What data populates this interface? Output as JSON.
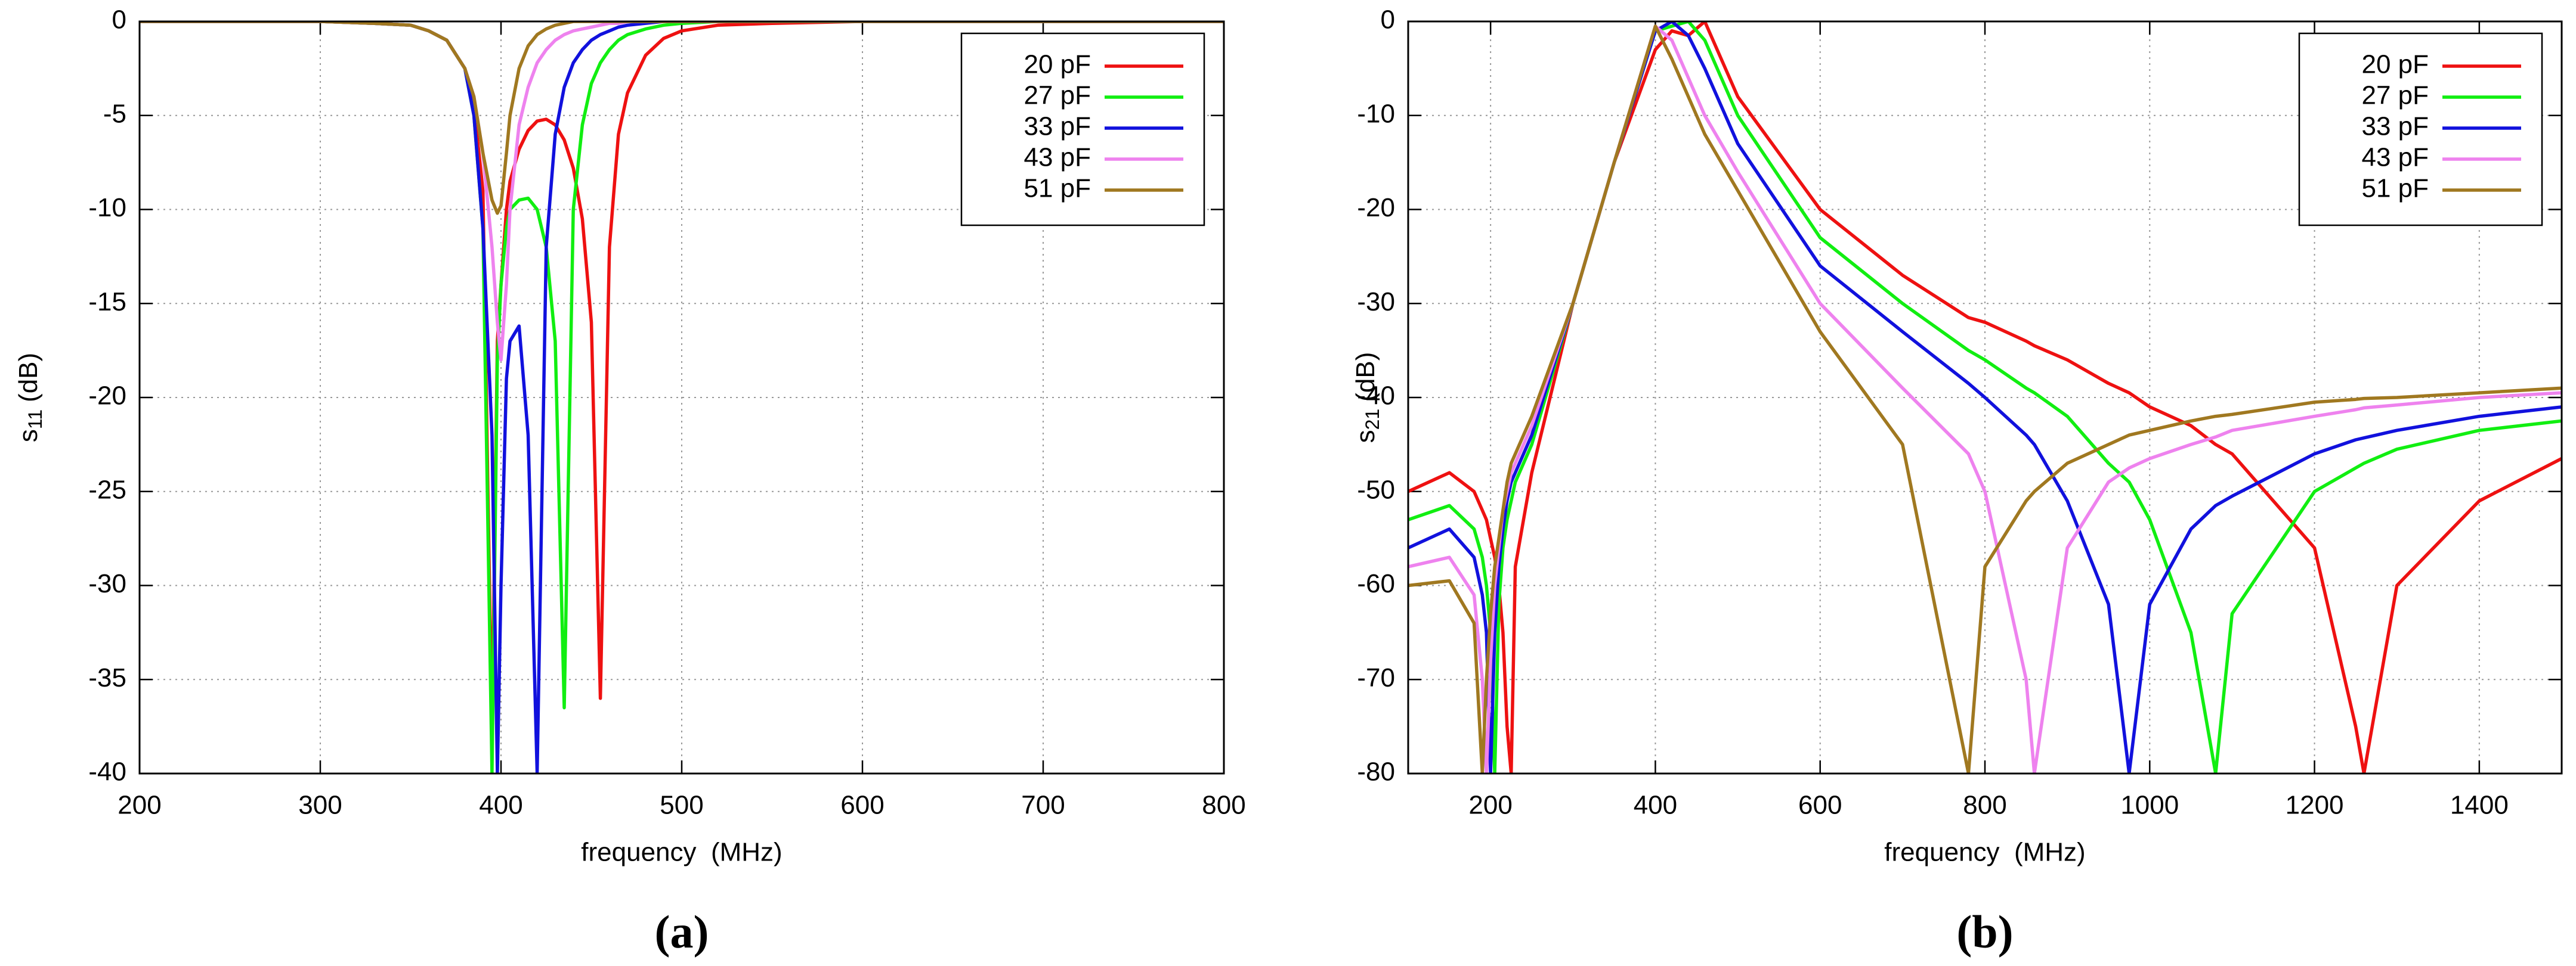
{
  "chart_data": [
    {
      "type": "line",
      "caption": "(a)",
      "x_label": "frequency  (MHz)",
      "y_label": {
        "main": "s",
        "sub": "11",
        "unit": "(dB)"
      },
      "xlim": [
        200,
        800
      ],
      "xticks": [
        200,
        300,
        400,
        500,
        600,
        700,
        800
      ],
      "ylim": [
        -40,
        0
      ],
      "yticks": [
        0,
        -5,
        -10,
        -15,
        -20,
        -25,
        -30,
        -35,
        -40
      ],
      "grid": true,
      "legend": "top-right",
      "x": [
        200,
        250,
        300,
        330,
        350,
        360,
        370,
        380,
        385,
        390,
        395,
        398,
        400,
        403,
        405,
        410,
        415,
        420,
        425,
        430,
        435,
        440,
        445,
        450,
        455,
        460,
        465,
        470,
        480,
        490,
        500,
        520,
        550,
        600,
        650,
        700,
        750,
        800
      ],
      "series": [
        {
          "name": "20 pF",
          "color": "#ee1111",
          "values": [
            0,
            0,
            0,
            -0.1,
            -0.2,
            -0.5,
            -1,
            -2.5,
            -4.5,
            -9,
            -38,
            -17,
            -14,
            -10,
            -8.5,
            -6.8,
            -5.8,
            -5.3,
            -5.2,
            -5.5,
            -6.3,
            -7.8,
            -10.5,
            -16,
            -36,
            -12,
            -6,
            -3.8,
            -1.8,
            -0.9,
            -0.5,
            -0.2,
            -0.1,
            0,
            0,
            0,
            0,
            0
          ]
        },
        {
          "name": "27 pF",
          "color": "#11ee11",
          "values": [
            0,
            0,
            0,
            -0.1,
            -0.2,
            -0.5,
            -1,
            -2.5,
            -5,
            -11,
            -40,
            -18,
            -14,
            -11,
            -10,
            -9.5,
            -9.4,
            -10,
            -12,
            -17,
            -36.5,
            -10,
            -5.5,
            -3.3,
            -2.2,
            -1.5,
            -1,
            -0.7,
            -0.4,
            -0.2,
            -0.1,
            0,
            0,
            0,
            0,
            0,
            0,
            0
          ]
        },
        {
          "name": "33 pF",
          "color": "#1111dd",
          "values": [
            0,
            0,
            0,
            -0.1,
            -0.2,
            -0.5,
            -1,
            -2.5,
            -5,
            -11,
            -22,
            -40,
            -30,
            -19,
            -17,
            -16.2,
            -22,
            -40,
            -12,
            -6,
            -3.5,
            -2.2,
            -1.5,
            -1,
            -0.7,
            -0.5,
            -0.3,
            -0.2,
            -0.1,
            0,
            0,
            0,
            0,
            0,
            0,
            0,
            0,
            0
          ]
        },
        {
          "name": "43 pF",
          "color": "#ee82ee",
          "values": [
            0,
            0,
            0,
            -0.1,
            -0.2,
            -0.5,
            -1,
            -2.5,
            -4,
            -7,
            -12,
            -16,
            -18,
            -14,
            -10,
            -5.5,
            -3.5,
            -2.2,
            -1.5,
            -1,
            -0.7,
            -0.5,
            -0.4,
            -0.3,
            -0.2,
            -0.1,
            -0.1,
            0,
            0,
            0,
            0,
            0,
            0,
            0,
            0,
            0,
            0,
            0
          ]
        },
        {
          "name": "51 pF",
          "color": "#a07820",
          "values": [
            0,
            0,
            0,
            -0.1,
            -0.2,
            -0.5,
            -1,
            -2.5,
            -4,
            -7,
            -9.5,
            -10.2,
            -9.8,
            -7,
            -5,
            -2.5,
            -1.3,
            -0.7,
            -0.4,
            -0.2,
            -0.1,
            0,
            0,
            0,
            0,
            0,
            0,
            0,
            0,
            0,
            0,
            0,
            0,
            0,
            0,
            0,
            0,
            0
          ]
        }
      ]
    },
    {
      "type": "line",
      "caption": "(b)",
      "x_label": "frequency  (MHz)",
      "y_label": {
        "main": "s",
        "sub": "21",
        "unit": "(dB)"
      },
      "xlim": [
        100,
        1500
      ],
      "xticks": [
        200,
        400,
        600,
        800,
        1000,
        1200,
        1400
      ],
      "ylim": [
        -80,
        0
      ],
      "yticks": [
        0,
        -10,
        -20,
        -30,
        -40,
        -50,
        -60,
        -70,
        -80
      ],
      "grid": true,
      "legend": "top-right",
      "x": [
        100,
        150,
        180,
        190,
        195,
        200,
        205,
        210,
        215,
        220,
        225,
        230,
        250,
        300,
        350,
        400,
        420,
        440,
        460,
        500,
        600,
        700,
        780,
        800,
        850,
        860,
        900,
        950,
        975,
        1000,
        1050,
        1080,
        1100,
        1200,
        1250,
        1260,
        1300,
        1400,
        1500
      ],
      "series": [
        {
          "name": "20 pF",
          "color": "#ee1111",
          "values": [
            -50,
            -48,
            -50,
            -52,
            -53,
            -55,
            -57,
            -60,
            -65,
            -75,
            -80,
            -58,
            -48,
            -30,
            -15,
            -3,
            -1,
            -1.5,
            0,
            -8,
            -20,
            -27,
            -31.5,
            -32,
            -34,
            -34.5,
            -36,
            -38.5,
            -39.5,
            -41,
            -43,
            -45,
            -46,
            -56,
            -75,
            -80,
            -60,
            -51,
            -46.5
          ]
        },
        {
          "name": "27 pF",
          "color": "#11ee11",
          "values": [
            -53,
            -51.5,
            -54,
            -57,
            -60,
            -65,
            -80,
            -62,
            -56,
            -53,
            -51,
            -49,
            -45,
            -30,
            -15,
            -1,
            -0.5,
            0,
            -2,
            -10,
            -23,
            -30,
            -35,
            -36,
            -39,
            -39.5,
            -42,
            -47,
            -49,
            -53,
            -65,
            -80,
            -63,
            -50,
            -47.5,
            -47,
            -45.5,
            -43.5,
            -42.5
          ]
        },
        {
          "name": "33 pF",
          "color": "#1111dd",
          "values": [
            -56,
            -54,
            -57,
            -61,
            -65,
            -80,
            -65,
            -58,
            -54,
            -51,
            -49,
            -48,
            -44,
            -30,
            -15,
            -1,
            0,
            -1.5,
            -5,
            -13,
            -26,
            -33,
            -38.5,
            -40,
            -44,
            -45,
            -51,
            -62,
            -80,
            -62,
            -54,
            -51.5,
            -50.5,
            -46,
            -44.5,
            -44.3,
            -43.5,
            -42,
            -41
          ]
        },
        {
          "name": "43 pF",
          "color": "#ee82ee",
          "values": [
            -58,
            -57,
            -61,
            -70,
            -80,
            -68,
            -60,
            -56,
            -52,
            -50,
            -48,
            -47,
            -43,
            -30,
            -15,
            -0.5,
            -2,
            -6,
            -10,
            -16,
            -30,
            -39,
            -46,
            -50,
            -70,
            -80,
            -56,
            -49,
            -47.5,
            -46.5,
            -45,
            -44.2,
            -43.5,
            -42,
            -41.3,
            -41.1,
            -40.8,
            -40,
            -39.5
          ]
        },
        {
          "name": "51 pF",
          "color": "#a07820",
          "values": [
            -60,
            -59.5,
            -64,
            -80,
            -70,
            -63,
            -58,
            -55,
            -52,
            -49,
            -47,
            -46,
            -42,
            -30,
            -15,
            -0.5,
            -4,
            -8,
            -12,
            -18,
            -33,
            -45,
            -80,
            -58,
            -51,
            -50,
            -47,
            -45,
            -44,
            -43.5,
            -42.5,
            -42,
            -41.8,
            -40.5,
            -40.2,
            -40.1,
            -40,
            -39.5,
            -39
          ]
        }
      ]
    }
  ]
}
